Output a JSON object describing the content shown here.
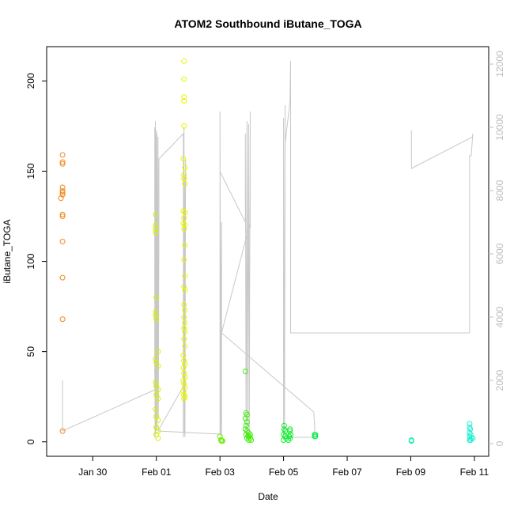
{
  "chart_data": {
    "type": "scatter",
    "title": "ATOM2 Southbound iButane_TOGA",
    "xlabel": "Date",
    "ylabel": "iButane_TOGA",
    "x_ticks": [
      "Jan 30",
      "Feb 01",
      "Feb 03",
      "Feb 05",
      "Feb 07",
      "Feb 09",
      "Feb 11"
    ],
    "x_tick_values": [
      29.0,
      31.0,
      33.0,
      35.0,
      37.0,
      39.0,
      41.0
    ],
    "xlim": [
      27.55,
      41.45
    ],
    "y_ticks": [
      0,
      50,
      100,
      150,
      200
    ],
    "ylim": [
      -8,
      219
    ],
    "y2_ticks": [
      0,
      2000,
      4000,
      6000,
      8000,
      10000,
      12000
    ],
    "y2lim": [
      -400,
      12550
    ],
    "grid": false,
    "series": [
      {
        "color": "#F28A1A",
        "points": [
          [
            28.05,
            159
          ],
          [
            28.05,
            155
          ],
          [
            28.05,
            154
          ],
          [
            28.05,
            141
          ],
          [
            28.05,
            139
          ],
          [
            28.05,
            138
          ],
          [
            28.05,
            137
          ],
          [
            28.0,
            135
          ],
          [
            28.05,
            126
          ],
          [
            28.05,
            125
          ],
          [
            28.05,
            111
          ],
          [
            28.05,
            91
          ],
          [
            28.05,
            68
          ],
          [
            28.05,
            6
          ]
        ]
      },
      {
        "color": "#D6F000",
        "points": [
          [
            30.98,
            126
          ],
          [
            30.98,
            120
          ],
          [
            30.98,
            118
          ],
          [
            30.98,
            116
          ],
          [
            31.0,
            80
          ],
          [
            30.98,
            72
          ],
          [
            30.98,
            70
          ],
          [
            31.0,
            68
          ],
          [
            31.05,
            50
          ],
          [
            30.98,
            46
          ],
          [
            31.0,
            44
          ],
          [
            31.05,
            42
          ],
          [
            30.98,
            33
          ],
          [
            31.0,
            31
          ],
          [
            31.05,
            29
          ],
          [
            31.0,
            26
          ],
          [
            31.05,
            24
          ],
          [
            30.98,
            18
          ],
          [
            31.0,
            14
          ],
          [
            31.05,
            12
          ],
          [
            31.0,
            8
          ],
          [
            31.05,
            6
          ],
          [
            31.0,
            4
          ],
          [
            31.05,
            2
          ]
        ]
      },
      {
        "color": "#E8F500",
        "points": [
          [
            31.87,
            211
          ],
          [
            31.87,
            201
          ],
          [
            31.87,
            191
          ],
          [
            31.87,
            189
          ],
          [
            31.87,
            175
          ],
          [
            31.85,
            157
          ],
          [
            31.9,
            152
          ],
          [
            31.87,
            148
          ],
          [
            31.87,
            146
          ],
          [
            31.9,
            143
          ],
          [
            31.85,
            128
          ],
          [
            31.9,
            127
          ],
          [
            31.87,
            124
          ],
          [
            31.85,
            121
          ],
          [
            31.9,
            120
          ],
          [
            31.87,
            118
          ],
          [
            31.9,
            109
          ],
          [
            31.87,
            101
          ],
          [
            31.9,
            92
          ],
          [
            31.87,
            86
          ],
          [
            31.9,
            84
          ],
          [
            31.87,
            76
          ],
          [
            31.9,
            73
          ],
          [
            31.87,
            69
          ],
          [
            31.9,
            66
          ],
          [
            31.87,
            63
          ],
          [
            31.9,
            61
          ],
          [
            31.87,
            57
          ],
          [
            31.9,
            53
          ],
          [
            31.85,
            48
          ],
          [
            31.87,
            45
          ],
          [
            31.9,
            43
          ],
          [
            31.85,
            41
          ],
          [
            31.87,
            38
          ],
          [
            31.9,
            36
          ],
          [
            31.85,
            34
          ],
          [
            31.87,
            32
          ],
          [
            31.9,
            30
          ],
          [
            31.85,
            28
          ],
          [
            31.87,
            26
          ],
          [
            31.9,
            25
          ],
          [
            31.87,
            24
          ]
        ]
      },
      {
        "color": "#66EE00",
        "points": [
          [
            33.0,
            3
          ],
          [
            33.03,
            1
          ],
          [
            33.05,
            0.5
          ],
          [
            33.08,
            0.5
          ]
        ]
      },
      {
        "color": "#44EE10",
        "points": [
          [
            33.8,
            39
          ],
          [
            33.82,
            16
          ],
          [
            33.85,
            15
          ],
          [
            33.8,
            13
          ],
          [
            33.85,
            11
          ],
          [
            33.82,
            9
          ],
          [
            33.8,
            7
          ],
          [
            33.85,
            6
          ],
          [
            33.9,
            5
          ],
          [
            33.82,
            4
          ],
          [
            33.88,
            3
          ],
          [
            33.92,
            3
          ],
          [
            33.85,
            2
          ],
          [
            33.9,
            1
          ],
          [
            33.95,
            2
          ],
          [
            33.98,
            1
          ],
          [
            33.95,
            4
          ]
        ]
      },
      {
        "color": "#10EE30",
        "points": [
          [
            35.02,
            9
          ],
          [
            35.02,
            7
          ],
          [
            35.05,
            6
          ],
          [
            35.0,
            4
          ],
          [
            35.05,
            3
          ],
          [
            35.0,
            1
          ],
          [
            35.08,
            2
          ],
          [
            35.2,
            7
          ],
          [
            35.2,
            6
          ],
          [
            35.22,
            4
          ],
          [
            35.18,
            3
          ],
          [
            35.2,
            2
          ],
          [
            35.15,
            1
          ]
        ]
      },
      {
        "color": "#10EE50",
        "points": [
          [
            35.98,
            4
          ],
          [
            35.98,
            3
          ],
          [
            36.0,
            4
          ],
          [
            36.0,
            3
          ]
        ]
      },
      {
        "color": "#10EEB0",
        "points": [
          [
            39.02,
            1
          ],
          [
            39.02,
            0.5
          ]
        ]
      },
      {
        "color": "#20EED0",
        "points": [
          [
            40.85,
            10
          ],
          [
            40.85,
            8
          ],
          [
            40.87,
            7
          ],
          [
            40.85,
            5
          ],
          [
            40.88,
            4
          ],
          [
            40.85,
            3
          ],
          [
            40.9,
            2
          ],
          [
            40.85,
            1
          ],
          [
            40.88,
            1
          ],
          [
            40.95,
            2
          ]
        ]
      }
    ],
    "secondary_line": {
      "axis": "right",
      "color": "#c8c8c8",
      "points": [
        [
          28.05,
          1500
        ],
        [
          28.05,
          800
        ],
        [
          28.05,
          2000
        ],
        [
          28.05,
          400
        ],
        [
          30.95,
          1700
        ],
        [
          30.95,
          10000
        ],
        [
          30.96,
          200
        ],
        [
          30.97,
          10200
        ],
        [
          30.98,
          300
        ],
        [
          31.0,
          9900
        ],
        [
          31.0,
          400
        ],
        [
          31.02,
          9800
        ],
        [
          31.03,
          500
        ],
        [
          31.05,
          9700
        ],
        [
          31.06,
          800
        ],
        [
          31.08,
          7000
        ],
        [
          31.08,
          9000
        ],
        [
          31.85,
          9800
        ],
        [
          31.85,
          200
        ],
        [
          31.87,
          10000
        ],
        [
          31.88,
          300
        ],
        [
          31.9,
          8500
        ],
        [
          31.9,
          200
        ],
        [
          31.92,
          9000
        ],
        [
          31.9,
          500
        ],
        [
          31.9,
          1900
        ],
        [
          31.05,
          400
        ],
        [
          33.0,
          300
        ],
        [
          33.0,
          10500
        ],
        [
          33.02,
          200
        ],
        [
          33.05,
          7000
        ],
        [
          33.05,
          300
        ],
        [
          33.0,
          8600
        ],
        [
          33.8,
          7000
        ],
        [
          33.8,
          9800
        ],
        [
          33.82,
          200
        ],
        [
          33.85,
          10200
        ],
        [
          33.87,
          300
        ],
        [
          33.9,
          10100
        ],
        [
          33.92,
          200
        ],
        [
          33.95,
          10500
        ],
        [
          33.95,
          6800
        ],
        [
          33.95,
          7000
        ],
        [
          33.05,
          3500
        ],
        [
          35.95,
          1000
        ],
        [
          35.98,
          500
        ],
        [
          35.98,
          200
        ],
        [
          35.0,
          200
        ],
        [
          35.0,
          10300
        ],
        [
          35.03,
          300
        ],
        [
          35.05,
          10700
        ],
        [
          35.05,
          9500
        ],
        [
          35.2,
          10800
        ],
        [
          35.22,
          12100
        ],
        [
          35.22,
          3500
        ],
        [
          40.85,
          3500
        ],
        [
          40.85,
          9100
        ],
        [
          40.9,
          9100
        ],
        [
          40.95,
          9800
        ],
        [
          40.95,
          9700
        ],
        [
          39.02,
          8700
        ],
        [
          39.02,
          9900
        ]
      ]
    }
  }
}
